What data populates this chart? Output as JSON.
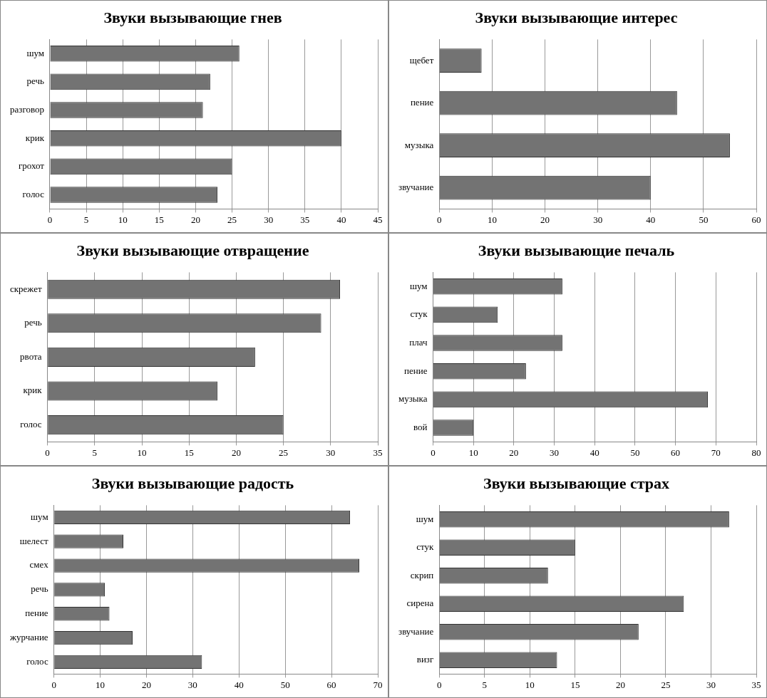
{
  "chart_data": [
    {
      "type": "bar",
      "orientation": "horizontal",
      "title": "Звуки вызывающие гнев",
      "categories": [
        "шум",
        "речь",
        "разговор",
        "крик",
        "грохот",
        "голос"
      ],
      "values": [
        26,
        22,
        21,
        40,
        25,
        23
      ],
      "color": "#737373",
      "xlim": [
        0,
        45
      ],
      "xticks": [
        0,
        5,
        10,
        15,
        20,
        25,
        30,
        35,
        40,
        45
      ],
      "grid": "x",
      "legend": false
    },
    {
      "type": "bar",
      "orientation": "horizontal",
      "title": "Звуки вызывающие интерес",
      "categories": [
        "щебет",
        "пение",
        "музыка",
        "звучание"
      ],
      "values": [
        8,
        45,
        55,
        40
      ],
      "color": "#737373",
      "xlim": [
        0,
        60
      ],
      "xticks": [
        0,
        10,
        20,
        30,
        40,
        50,
        60
      ],
      "grid": "x",
      "legend": false
    },
    {
      "type": "bar",
      "orientation": "horizontal",
      "title": "Звуки вызывающие отвращение",
      "categories": [
        "скрежет",
        "речь",
        "рвота",
        "крик",
        "голос"
      ],
      "values": [
        31,
        29,
        22,
        18,
        25
      ],
      "color": "#737373",
      "xlim": [
        0,
        35
      ],
      "xticks": [
        0,
        5,
        10,
        15,
        20,
        25,
        30,
        35
      ],
      "grid": "x",
      "legend": false
    },
    {
      "type": "bar",
      "orientation": "horizontal",
      "title": "Звуки вызывающие печаль",
      "categories": [
        "шум",
        "стук",
        "плач",
        "пение",
        "музыка",
        "вой"
      ],
      "values": [
        32,
        16,
        32,
        23,
        68,
        10
      ],
      "color": "#737373",
      "xlim": [
        0,
        80
      ],
      "xticks": [
        0,
        10,
        20,
        30,
        40,
        50,
        60,
        70,
        80
      ],
      "grid": "x",
      "legend": false
    },
    {
      "type": "bar",
      "orientation": "horizontal",
      "title": "Звуки вызывающие радость",
      "categories": [
        "шум",
        "шелест",
        "смех",
        "речь",
        "пение",
        "журчание",
        "голос"
      ],
      "values": [
        64,
        15,
        66,
        11,
        12,
        17,
        32
      ],
      "color": "#737373",
      "xlim": [
        0,
        70
      ],
      "xticks": [
        0,
        10,
        20,
        30,
        40,
        50,
        60,
        70
      ],
      "grid": "x",
      "legend": false
    },
    {
      "type": "bar",
      "orientation": "horizontal",
      "title": "Звуки вызывающие страх",
      "categories": [
        "шум",
        "стук",
        "скрип",
        "сирена",
        "звучание",
        "визг"
      ],
      "values": [
        32,
        15,
        12,
        27,
        22,
        13
      ],
      "color": "#737373",
      "xlim": [
        0,
        35
      ],
      "xticks": [
        0,
        5,
        10,
        15,
        20,
        25,
        30,
        35
      ],
      "grid": "x",
      "legend": false
    }
  ]
}
